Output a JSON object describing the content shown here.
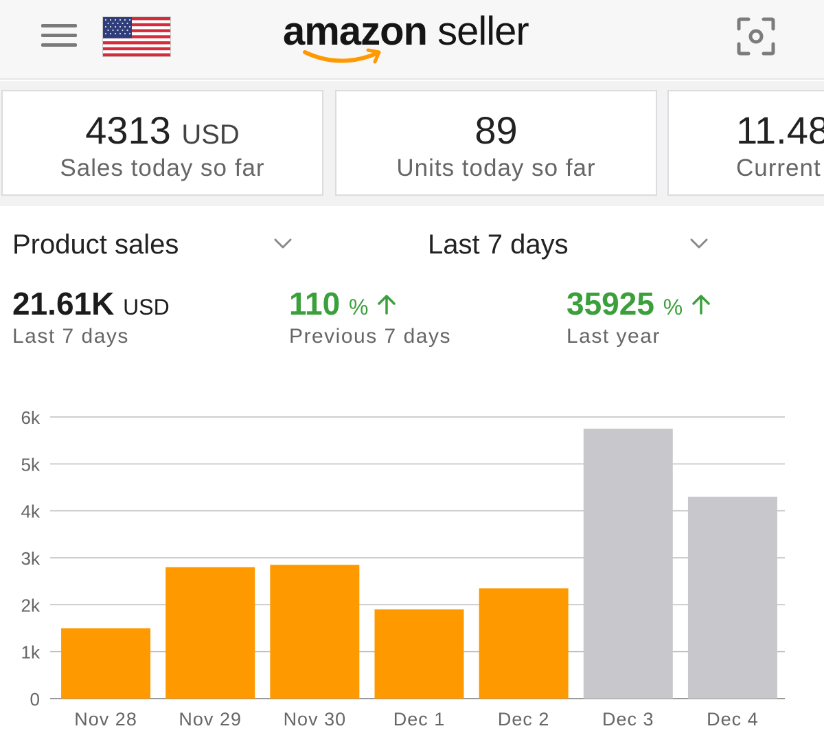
{
  "header": {
    "menu_icon": "hamburger-menu-icon",
    "flag_icon": "us-flag-icon",
    "logo_brand": "amazon",
    "logo_suffix": "seller",
    "scan_icon": "camera-scan-icon"
  },
  "stats": [
    {
      "value": "4313",
      "unit": "USD",
      "label": "Sales today so far"
    },
    {
      "value": "89",
      "unit": "",
      "label": "Units today so far"
    },
    {
      "value": "11.48",
      "unit": "",
      "label": "Current"
    }
  ],
  "selectors": {
    "metric_label": "Product sales",
    "range_label": "Last 7 days"
  },
  "metrics": [
    {
      "value": "21.61K",
      "unit": "USD",
      "caption": "Last 7 days"
    },
    {
      "value": "110",
      "unit": "%",
      "caption": "Previous 7 days",
      "trend": "up"
    },
    {
      "value": "35925",
      "unit": "%",
      "caption": "Last year",
      "trend": "up"
    }
  ],
  "colors": {
    "accent_orange": "#ff9900",
    "projected_gray": "#c8c8cc",
    "positive_green": "#3ba03b"
  },
  "chart_data": {
    "type": "bar",
    "categories": [
      "Nov 28",
      "Nov 29",
      "Nov 30",
      "Dec 1",
      "Dec 2",
      "Dec 3",
      "Dec 4"
    ],
    "values": [
      1500,
      2800,
      2850,
      1900,
      2350,
      5750,
      4300
    ],
    "bar_colors": [
      "#ff9900",
      "#ff9900",
      "#ff9900",
      "#ff9900",
      "#ff9900",
      "#c8c8cc",
      "#c8c8cc"
    ],
    "ylim": [
      0,
      6000
    ],
    "yticks": [
      0,
      1000,
      2000,
      3000,
      4000,
      5000,
      6000
    ],
    "ytick_labels": [
      "0",
      "1k",
      "2k",
      "3k",
      "4k",
      "5k",
      "6k"
    ],
    "grid": true,
    "title": "",
    "xlabel": "",
    "ylabel": ""
  }
}
